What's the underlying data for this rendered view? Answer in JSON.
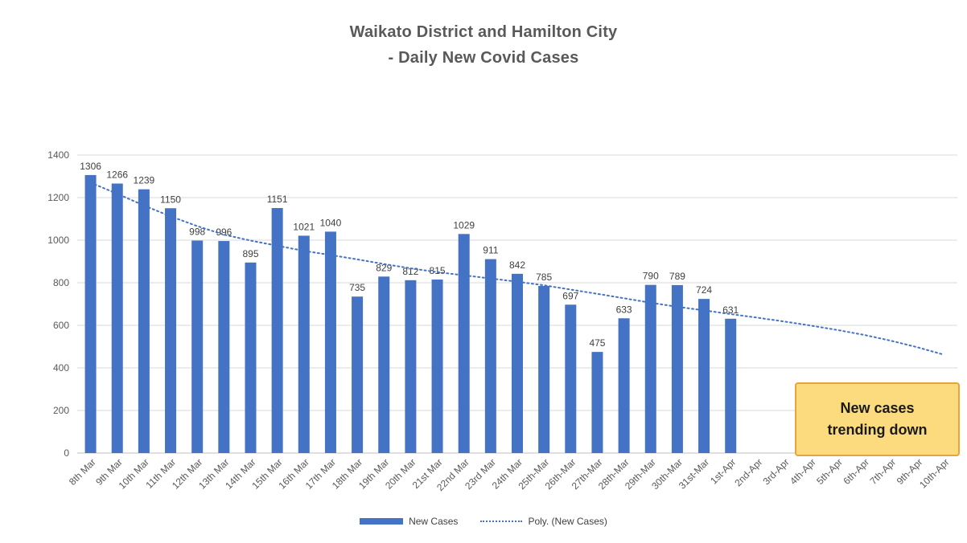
{
  "title": {
    "line1": "Waikato District and Hamilton City",
    "line2": "- Daily New Covid Cases"
  },
  "annotation": {
    "line1": "New cases",
    "line2": "trending down",
    "fill": "#FBDB7D",
    "border": "#E8A33B"
  },
  "legend": {
    "series_label": "New Cases",
    "trendline_label": "Poly. (New Cases)"
  },
  "colors": {
    "bar": "#4472C4",
    "trendline": "#4472C4",
    "grid": "#D9D9D9",
    "axis_line": "#BFBFBF",
    "axis_text": "#595959",
    "data_label_text": "#404040",
    "title_text": "#595959"
  },
  "chart_data": {
    "type": "bar",
    "title": "Waikato District and Hamilton City - Daily New Covid Cases",
    "categories": [
      "8th Mar",
      "9th Mar",
      "10th Mar",
      "11th Mar",
      "12th Mar",
      "13th Mar",
      "14th Mar",
      "15th Mar",
      "16th Mar",
      "17th Mar",
      "18th Mar",
      "19th Mar",
      "20th Mar",
      "21st Mar",
      "22nd Mar",
      "23rd Mar",
      "24th Mar",
      "25th-Mar",
      "26th-Mar",
      "27th-Mar",
      "28th-Mar",
      "29th-Mar",
      "30th-Mar",
      "31st-Mar",
      "1st-Apr",
      "2nd-Apr",
      "3rd-Apr",
      "4th-Apr",
      "5th-Apr",
      "6th-Apr",
      "7th-Apr",
      "9th-Apr",
      "10th-Apr"
    ],
    "series": [
      {
        "name": "New Cases",
        "values": [
          1306,
          1266,
          1239,
          1150,
          998,
          996,
          895,
          1151,
          1021,
          1040,
          735,
          829,
          812,
          815,
          1029,
          911,
          842,
          785,
          697,
          475,
          633,
          790,
          789,
          724,
          631,
          null,
          null,
          null,
          null,
          null,
          null,
          null,
          null
        ]
      }
    ],
    "ylim": [
      0,
      1400
    ],
    "yticks": [
      0,
      200,
      400,
      600,
      800,
      1000,
      1200,
      1400
    ],
    "grid": true,
    "legend_position": "bottom",
    "trendline": {
      "name": "Poly. (New Cases)",
      "style": "dotted",
      "points": [
        [
          0,
          1270
        ],
        [
          1,
          1218
        ],
        [
          2,
          1163
        ],
        [
          3,
          1112
        ],
        [
          4,
          1066
        ],
        [
          5,
          1026
        ],
        [
          6,
          998
        ],
        [
          7,
          974
        ],
        [
          8,
          950
        ],
        [
          9,
          930
        ],
        [
          10,
          910
        ],
        [
          11,
          888
        ],
        [
          12,
          868
        ],
        [
          13,
          850
        ],
        [
          14,
          835
        ],
        [
          15,
          820
        ],
        [
          16,
          805
        ],
        [
          17,
          788
        ],
        [
          18,
          768
        ],
        [
          19,
          748
        ],
        [
          20,
          727
        ],
        [
          21,
          706
        ],
        [
          22,
          687
        ],
        [
          23,
          670
        ],
        [
          24,
          653
        ],
        [
          25,
          636
        ],
        [
          26,
          618
        ],
        [
          27,
          599
        ],
        [
          28,
          578
        ],
        [
          29,
          555
        ],
        [
          30,
          528
        ],
        [
          31,
          497
        ],
        [
          32,
          462
        ]
      ]
    }
  }
}
